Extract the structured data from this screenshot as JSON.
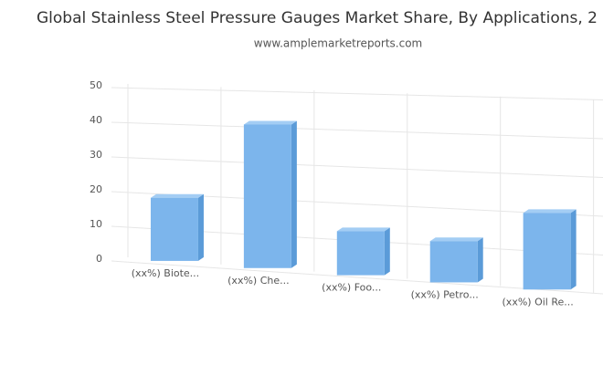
{
  "chart_data": {
    "type": "bar3d",
    "title": "Global Stainless Steel Pressure Gauges Market Share, By Applications, 2",
    "subtitle": "www.amplemarketreports.com",
    "categories": [
      "(xx%) Biote...",
      "(xx%) Che...",
      "(xx%) Foo...",
      "(xx%) Petro...",
      "(xx%) Oil Re..."
    ],
    "values": [
      18,
      40,
      12,
      11,
      20
    ],
    "color": "#7cb5ec",
    "ylim": [
      0,
      50
    ],
    "yticks": [
      0,
      10,
      20,
      30,
      40,
      50
    ],
    "grid": true
  }
}
